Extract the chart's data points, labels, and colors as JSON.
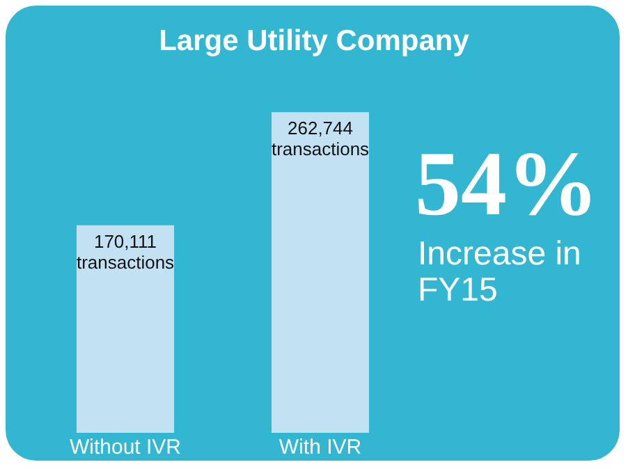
{
  "chart_data": {
    "type": "bar",
    "title": "Large Utility Company",
    "categories": [
      "Without IVR",
      "With IVR"
    ],
    "values": [
      170111,
      262744
    ],
    "value_labels": [
      "170,111\ntransactions",
      "262,744\ntransactions"
    ],
    "color": "#c2e2f4",
    "annotations": [
      "54%",
      "Increase in FY15"
    ],
    "legend": false,
    "grid": false
  }
}
